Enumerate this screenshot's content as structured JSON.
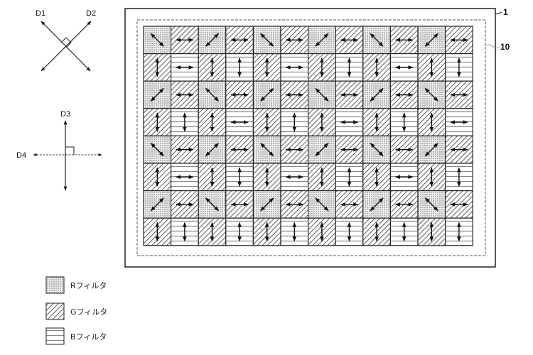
{
  "directions": {
    "d1": "D1",
    "d2": "D2",
    "d3": "D3",
    "d4": "D4"
  },
  "references": {
    "outer": "1",
    "inner": "10"
  },
  "legend": [
    {
      "type": "R",
      "label": "Rフィルタ"
    },
    {
      "type": "G",
      "label": "Gフィルタ"
    },
    {
      "type": "B",
      "label": "Bフィルタ"
    }
  ],
  "grid_legend": {
    "R1": "R filter, arrow along D1",
    "R2": "R filter, arrow along D2",
    "GH": "G filter, arrow along D4",
    "GV": "G filter, arrow along D3",
    "BH": "B filter, arrow along D4",
    "BV": "B filter, arrow along D3"
  },
  "grid": [
    [
      "R1",
      "GH",
      "R2",
      "GH",
      "R1",
      "GH",
      "R2",
      "GH",
      "R1",
      "GH",
      "R2",
      "GH"
    ],
    [
      "GV",
      "BH",
      "GV",
      "BV",
      "GV",
      "BH",
      "GV",
      "BV",
      "GV",
      "BH",
      "GV",
      "BV"
    ],
    [
      "R2",
      "GH",
      "R1",
      "GH",
      "R2",
      "GH",
      "R1",
      "GH",
      "R2",
      "GH",
      "R1",
      "GH"
    ],
    [
      "GV",
      "BV",
      "GV",
      "BH",
      "GV",
      "BV",
      "GV",
      "BH",
      "GV",
      "BV",
      "GV",
      "BH"
    ],
    [
      "R1",
      "GH",
      "R2",
      "GH",
      "R1",
      "GH",
      "R2",
      "GH",
      "R1",
      "GH",
      "R2",
      "GH"
    ],
    [
      "GV",
      "BH",
      "GV",
      "BV",
      "GV",
      "BH",
      "GV",
      "BV",
      "GV",
      "BH",
      "GV",
      "BV"
    ],
    [
      "R2",
      "GH",
      "R1",
      "GH",
      "R2",
      "GH",
      "R1",
      "GH",
      "R2",
      "GH",
      "R1",
      "GH"
    ],
    [
      "GV",
      "BV",
      "GV",
      "BV",
      "GV",
      "BV",
      "GV",
      "BV",
      "GV",
      "BV",
      "GV",
      "BV"
    ]
  ]
}
